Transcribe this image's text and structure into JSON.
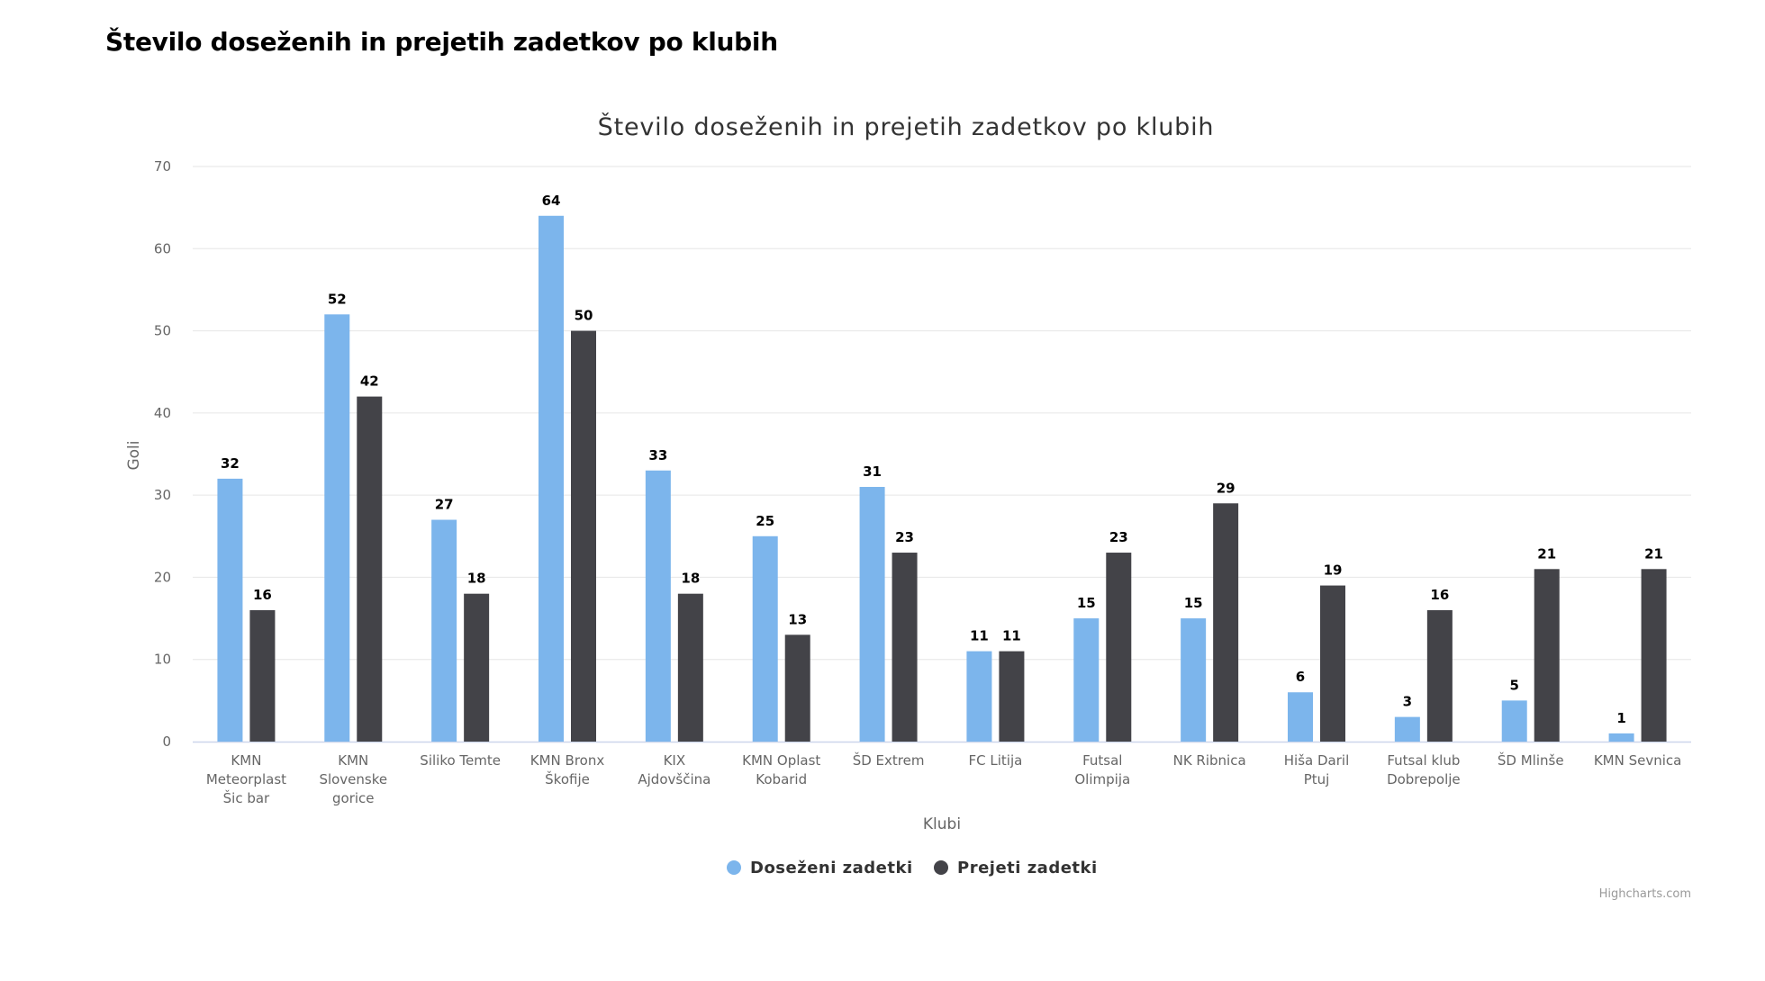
{
  "page": {
    "heading": "Število doseženih in prejetih zadetkov po klubih"
  },
  "chart_data": {
    "type": "bar",
    "title": "Število doseženih in prejetih zadetkov po klubih",
    "xlabel": "Klubi",
    "ylabel": "Goli",
    "ylim": [
      0,
      70
    ],
    "yticks": [
      0,
      10,
      20,
      30,
      40,
      50,
      60,
      70
    ],
    "grid": true,
    "legend_position": "bottom-center",
    "credit": "Highcharts.com",
    "categories": [
      [
        "KMN",
        "Meteorplast",
        "Šic bar"
      ],
      [
        "KMN",
        "Slovenske",
        "gorice"
      ],
      [
        "Siliko Temte"
      ],
      [
        "KMN Bronx",
        "Škofije"
      ],
      [
        "KIX",
        "Ajdovščina"
      ],
      [
        "KMN Oplast",
        "Kobarid"
      ],
      [
        "ŠD Extrem"
      ],
      [
        "FC Litija"
      ],
      [
        "Futsal",
        "Olimpija"
      ],
      [
        "NK Ribnica"
      ],
      [
        "Hiša Daril",
        "Ptuj"
      ],
      [
        "Futsal klub",
        "Dobrepolje"
      ],
      [
        "ŠD Mlinše"
      ],
      [
        "KMN Sevnica"
      ]
    ],
    "series": [
      {
        "name": "Doseženi zadetki",
        "color": "#7cb5ec",
        "values": [
          32,
          52,
          27,
          64,
          33,
          25,
          31,
          11,
          15,
          15,
          6,
          3,
          5,
          1
        ]
      },
      {
        "name": "Prejeti zadetki",
        "color": "#434348",
        "values": [
          16,
          42,
          18,
          50,
          18,
          13,
          23,
          11,
          23,
          29,
          19,
          16,
          21,
          21
        ]
      }
    ],
    "colors": {
      "grid": "#e6e6e6",
      "axis_line": "#ccd6eb",
      "tick_label": "#666666",
      "title": "#333333",
      "credit": "#999999",
      "data_label": "#000000"
    }
  }
}
